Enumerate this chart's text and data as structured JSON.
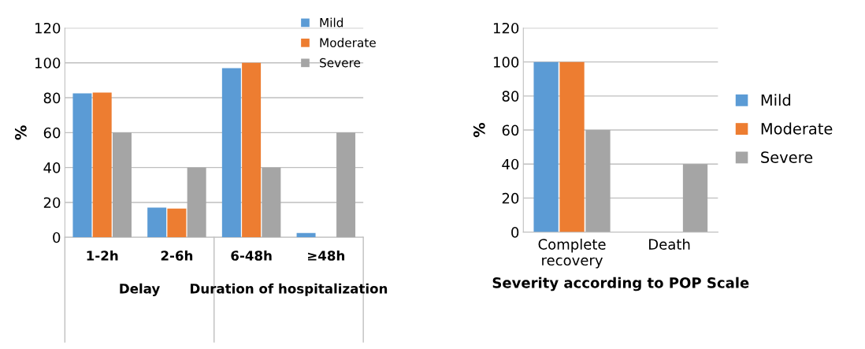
{
  "chart_data": [
    {
      "type": "bar",
      "ylabel": "%",
      "categories": [
        "1-2h",
        "2-6h",
        "6-48h",
        "≥48h"
      ],
      "series": [
        {
          "name": "Mild",
          "color": "#5b9bd5",
          "values": [
            82.5,
            17,
            97,
            2.5
          ]
        },
        {
          "name": "Moderate",
          "color": "#ed7d31",
          "values": [
            83,
            16.5,
            100,
            0
          ]
        },
        {
          "name": "Severe",
          "color": "#a5a5a5",
          "values": [
            60,
            40,
            40,
            60
          ]
        }
      ],
      "ylim": [
        0,
        120
      ],
      "yticks": [
        0,
        20,
        40,
        60,
        80,
        100,
        120
      ],
      "grid": "y",
      "legend": "top right",
      "annotations": [
        "Delay",
        "Duration of hospitalization"
      ]
    },
    {
      "type": "bar",
      "ylabel": "%",
      "xlabel": "Severity according to POP Scale",
      "categories": [
        "Complete recovery",
        "Death"
      ],
      "series": [
        {
          "name": "Mild",
          "color": "#5b9bd5",
          "values": [
            100,
            0
          ]
        },
        {
          "name": "Moderate",
          "color": "#ed7d31",
          "values": [
            100,
            0
          ]
        },
        {
          "name": "Severe",
          "color": "#a5a5a5",
          "values": [
            60,
            40
          ]
        }
      ],
      "ylim": [
        0,
        120
      ],
      "yticks": [
        0,
        20,
        40,
        60,
        80,
        100,
        120
      ],
      "grid": "y",
      "legend": "right"
    }
  ]
}
